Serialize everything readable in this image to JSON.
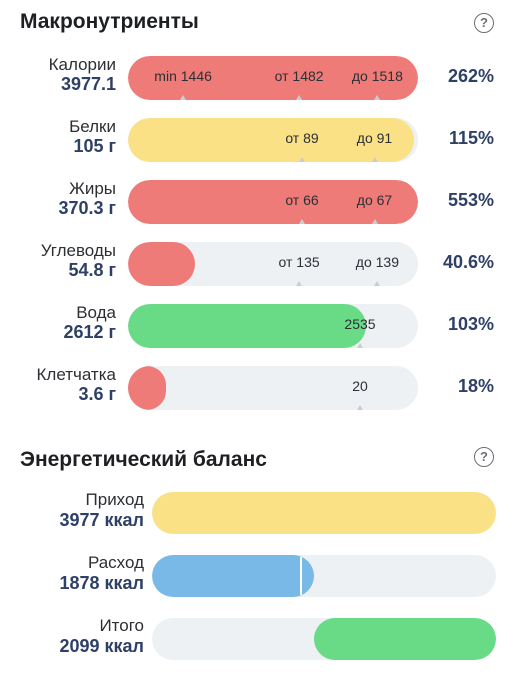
{
  "macros": {
    "title": "Макронутриенты",
    "help": "?",
    "rows": [
      {
        "label": "Калории",
        "value": "3977.1",
        "percent": "262%",
        "fill_fraction": 1.0,
        "color": "red",
        "ticks": [
          {
            "text": "min 1446",
            "pos": 0.19,
            "mark": 0.19
          },
          {
            "text": "от 1482",
            "pos": 0.59,
            "mark": 0.59
          },
          {
            "text": "до 1518",
            "pos": 0.86,
            "mark": 0.86
          }
        ]
      },
      {
        "label": "Белки",
        "value": "105 г",
        "percent": "115%",
        "fill_fraction": 0.985,
        "color": "yellow",
        "ticks": [
          {
            "text": "от 89",
            "pos": 0.6,
            "mark": 0.6
          },
          {
            "text": "до 91",
            "pos": 0.85,
            "mark": 0.85
          }
        ]
      },
      {
        "label": "Жиры",
        "value": "370.3 г",
        "percent": "553%",
        "fill_fraction": 1.0,
        "color": "red",
        "ticks": [
          {
            "text": "от 66",
            "pos": 0.6,
            "mark": 0.6
          },
          {
            "text": "до 67",
            "pos": 0.85,
            "mark": 0.85
          }
        ]
      },
      {
        "label": "Углеводы",
        "value": "54.8 г",
        "percent": "40.6%",
        "fill_fraction": 0.23,
        "color": "red",
        "ticks": [
          {
            "text": "от 135",
            "pos": 0.59,
            "mark": 0.59
          },
          {
            "text": "до 139",
            "pos": 0.86,
            "mark": 0.86
          }
        ]
      },
      {
        "label": "Вода",
        "value": "2612 г",
        "percent": "103%",
        "fill_fraction": 0.82,
        "color": "green",
        "ticks": [
          {
            "text": "2535",
            "pos": 0.8,
            "mark": 0.8
          }
        ]
      },
      {
        "label": "Клетчатка",
        "value": "3.6 г",
        "percent": "18%",
        "fill_fraction": 0.13,
        "color": "red",
        "ticks": [
          {
            "text": "20",
            "pos": 0.8,
            "mark": 0.8
          }
        ]
      }
    ]
  },
  "energy": {
    "title": "Энергетический баланс",
    "help": "?",
    "rows": [
      {
        "label": "Приход",
        "value": "3977 ккал",
        "fill_start": 0.0,
        "fill_fraction": 1.0,
        "color": "yellow"
      },
      {
        "label": "Расход",
        "value": "1878 ккал",
        "fill_start": 0.0,
        "fill_fraction": 0.47,
        "color": "blue",
        "marker": 0.43
      },
      {
        "label": "Итого",
        "value": "2099 ккал",
        "fill_start": 0.47,
        "fill_fraction": 0.53,
        "color": "green"
      }
    ]
  },
  "colors": {
    "red": "#ee7b78",
    "yellow": "#fae186",
    "green": "#69db86",
    "blue": "#79b9e7",
    "track": "#edf1f4"
  }
}
